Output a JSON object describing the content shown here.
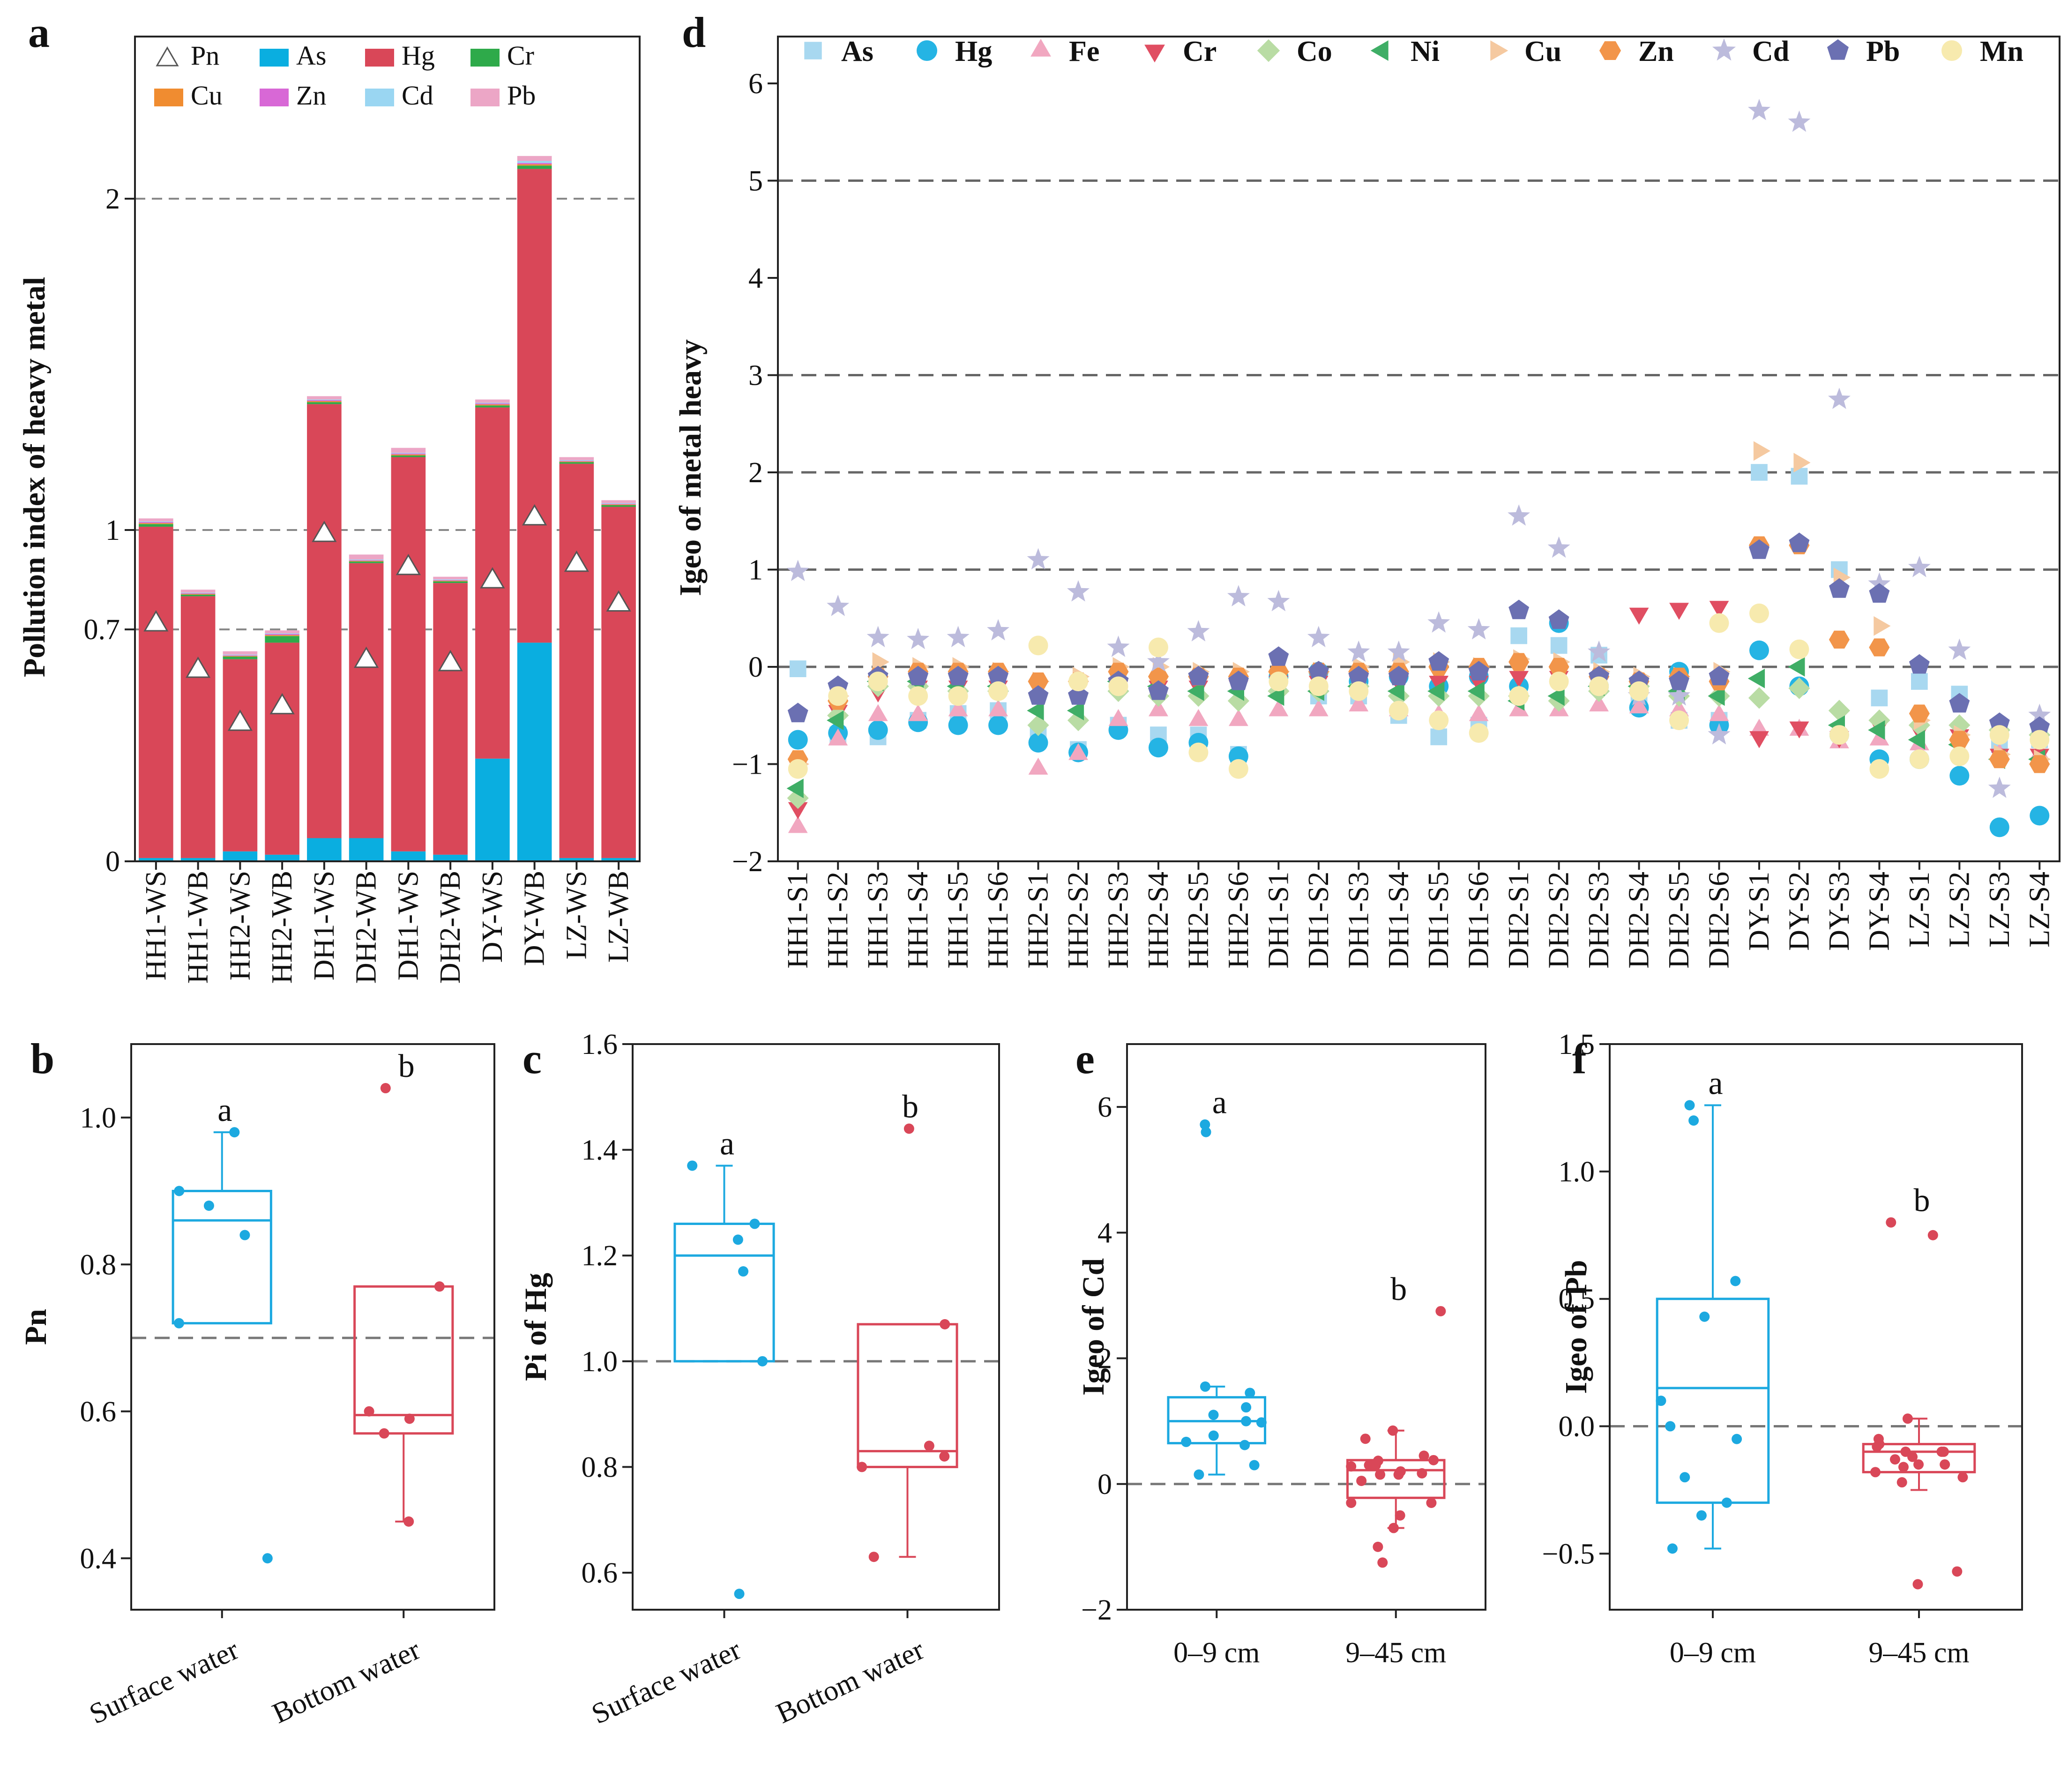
{
  "colors": {
    "As": "#0aaee0",
    "Hg": "#d94758",
    "Cr": "#2eaa4a",
    "Cu": "#f08c30",
    "Zn": "#d868d6",
    "Cd": "#9ad6f2",
    "Pb": "#eca6c6",
    "blue": "#1ca9e0",
    "red": "#d94758",
    "dAs": "#a8d8f0",
    "dHg": "#25b4e4",
    "dFe": "#f1a7c0",
    "dCr": "#e04e62",
    "dCo": "#b9dca4",
    "dNi": "#3fae66",
    "dCu": "#f5c9a0",
    "dZn": "#f2954a",
    "dCd": "#bcbbdc",
    "dPb": "#6b70b2",
    "dMn": "#f7eaae"
  },
  "chart_data": [
    {
      "panel": "a",
      "type": "bar",
      "ylabel": "Pollution index of heavy metal",
      "categories": [
        "HH1-WS",
        "HH1-WB",
        "HH2-WS",
        "HH2-WB",
        "DH1-WS",
        "DH2-WB",
        "DH1-WS",
        "DH2-WB",
        "DY-WS",
        "DY-WB",
        "LZ-WS",
        "LZ-WB"
      ],
      "ytick_labels": [
        "0",
        "0.7",
        "1",
        "2"
      ],
      "ytick_values": [
        0,
        0.7,
        1,
        2
      ],
      "reference_lines": [
        0.7,
        1,
        2
      ],
      "series": [
        {
          "name": "As",
          "values": [
            0.01,
            0.01,
            0.03,
            0.02,
            0.07,
            0.07,
            0.03,
            0.02,
            0.31,
            0.66,
            0.01,
            0.01
          ]
        },
        {
          "name": "Hg",
          "values": [
            1.0,
            0.79,
            0.58,
            0.64,
            1.31,
            0.83,
            1.19,
            0.82,
            1.06,
            1.43,
            1.19,
            1.06
          ]
        },
        {
          "name": "Cr",
          "values": [
            0.008,
            0.005,
            0.008,
            0.02,
            0.006,
            0.005,
            0.005,
            0.005,
            0.006,
            0.01,
            0.005,
            0.005
          ]
        },
        {
          "name": "Cu",
          "values": [
            0.003,
            0.002,
            0.002,
            0.003,
            0.003,
            0.002,
            0.003,
            0.002,
            0.003,
            0.004,
            0.002,
            0.002
          ]
        },
        {
          "name": "Zn",
          "values": [
            0.003,
            0.002,
            0.002,
            0.003,
            0.003,
            0.002,
            0.003,
            0.002,
            0.003,
            0.004,
            0.002,
            0.002
          ]
        },
        {
          "name": "Cd",
          "values": [
            0.002,
            0.002,
            0.002,
            0.002,
            0.002,
            0.002,
            0.002,
            0.002,
            0.002,
            0.006,
            0.002,
            0.002
          ]
        },
        {
          "name": "Pb",
          "values": [
            0.009,
            0.009,
            0.01,
            0.009,
            0.01,
            0.015,
            0.015,
            0.008,
            0.01,
            0.015,
            0.009,
            0.009
          ]
        }
      ],
      "pn_marker": "Pn",
      "pn": [
        0.72,
        0.58,
        0.42,
        0.47,
        0.99,
        0.61,
        0.89,
        0.6,
        0.85,
        1.04,
        0.9,
        0.78
      ],
      "legend": [
        "Pn",
        "As",
        "Hg",
        "Cr",
        "Cu",
        "Zn",
        "Cd",
        "Pb"
      ]
    },
    {
      "panel": "b",
      "type": "box",
      "ylabel": "Pn",
      "ylim": [
        0.33,
        1.1
      ],
      "ytick_labels": [
        "0.4",
        "0.6",
        "0.8",
        "1.0"
      ],
      "ytick_values": [
        0.4,
        0.6,
        0.8,
        1.0
      ],
      "reference_line": 0.7,
      "groups": [
        {
          "name": "Surface water",
          "q1": 0.72,
          "median": 0.86,
          "q3": 0.9,
          "whisker_low": 0.72,
          "whisker_high": 0.98,
          "points": [
            0.98,
            0.9,
            0.88,
            0.84,
            0.72,
            0.4
          ],
          "letter": "a"
        },
        {
          "name": "Bottom water",
          "q1": 0.57,
          "median": 0.595,
          "q3": 0.77,
          "whisker_low": 0.45,
          "whisker_high": 0.77,
          "points": [
            1.04,
            0.77,
            0.6,
            0.59,
            0.57,
            0.45
          ],
          "letter": "b"
        }
      ]
    },
    {
      "panel": "c",
      "type": "box",
      "ylabel": "Pi of Hg",
      "ylim": [
        0.53,
        1.6
      ],
      "ytick_labels": [
        "0.6",
        "0.8",
        "1.0",
        "1.2",
        "1.4",
        "1.6"
      ],
      "ytick_values": [
        0.6,
        0.8,
        1.0,
        1.2,
        1.4,
        1.6
      ],
      "reference_line": 1.0,
      "groups": [
        {
          "name": "Surface water",
          "q1": 1.0,
          "median": 1.2,
          "q3": 1.26,
          "whisker_low": 1.0,
          "whisker_high": 1.37,
          "points": [
            1.37,
            1.26,
            1.23,
            1.17,
            1.0,
            0.56
          ],
          "letter": "a"
        },
        {
          "name": "Bottom water",
          "q1": 0.8,
          "median": 0.83,
          "q3": 1.07,
          "whisker_low": 0.63,
          "whisker_high": 1.07,
          "points": [
            1.44,
            1.07,
            0.84,
            0.82,
            0.8,
            0.63
          ],
          "letter": "b"
        }
      ]
    },
    {
      "panel": "d",
      "type": "scatter",
      "ylabel": "Igeo of metal heavy",
      "ylim": [
        -2,
        6.5
      ],
      "ytick_labels": [
        "−2",
        "−1",
        "0",
        "1",
        "2",
        "3",
        "4",
        "5",
        "6"
      ],
      "ytick_values": [
        -2,
        -1,
        0,
        1,
        2,
        3,
        4,
        5,
        6
      ],
      "reference_lines": [
        0,
        1,
        2,
        3,
        5
      ],
      "categories": [
        "HH1-S1",
        "HH1-S2",
        "HH1-S3",
        "HH1-S4",
        "HH1-S5",
        "HH1-S6",
        "HH2-S1",
        "HH2-S2",
        "HH2-S3",
        "HH2-S4",
        "HH2-S5",
        "HH2-S6",
        "DH1-S1",
        "DH1-S2",
        "DH1-S3",
        "DH1-S4",
        "DH1-S5",
        "DH1-S6",
        "DH2-S1",
        "DH2-S2",
        "DH2-S3",
        "DH2-S4",
        "DH2-S5",
        "DH2-S6",
        "DY-S1",
        "DY-S2",
        "DY-S3",
        "DY-S4",
        "LZ-S1",
        "LZ-S2",
        "LZ-S3",
        "LZ-S4"
      ],
      "series": [
        {
          "name": "As",
          "marker": "square",
          "values": [
            -0.02,
            -0.7,
            -0.72,
            -0.55,
            -0.48,
            -0.45,
            -0.7,
            -0.85,
            -0.6,
            -0.7,
            -0.7,
            -0.9,
            -0.1,
            -0.3,
            -0.3,
            -0.5,
            -0.72,
            -0.6,
            0.32,
            0.22,
            0.12,
            -0.35,
            -0.55,
            -0.55,
            2.0,
            1.96,
            1.0,
            -0.32,
            -0.15,
            -0.28,
            -0.8,
            -0.75
          ]
        },
        {
          "name": "Hg",
          "marker": "circle",
          "values": [
            -0.75,
            -0.68,
            -0.65,
            -0.57,
            -0.6,
            -0.6,
            -0.78,
            -0.88,
            -0.65,
            -0.83,
            -0.78,
            -0.92,
            -0.1,
            -0.05,
            -0.15,
            -0.1,
            -0.2,
            -0.1,
            -0.2,
            0.45,
            -0.2,
            -0.42,
            -0.05,
            -0.6,
            0.17,
            -0.2,
            -0.7,
            -0.95,
            -0.95,
            -1.12,
            -1.65,
            -1.53
          ]
        },
        {
          "name": "Fe",
          "marker": "triangle-up",
          "values": [
            -1.65,
            -0.75,
            -0.5,
            -0.5,
            -0.45,
            -0.45,
            -1.05,
            -0.9,
            -0.55,
            -0.45,
            -0.55,
            -0.55,
            -0.45,
            -0.45,
            -0.4,
            -0.45,
            -0.5,
            -0.5,
            -0.45,
            -0.45,
            -0.4,
            -0.42,
            -0.45,
            -0.5,
            -0.65,
            -0.65,
            -0.78,
            -0.75,
            -0.8,
            -0.85,
            -0.9,
            -0.9
          ]
        },
        {
          "name": "Cr",
          "marker": "triangle-down",
          "values": [
            -1.45,
            -0.45,
            -0.25,
            -0.2,
            -0.2,
            -0.2,
            -0.2,
            -0.2,
            -0.2,
            -0.2,
            -0.2,
            -0.2,
            -0.15,
            -0.15,
            -0.15,
            -0.15,
            -0.15,
            -0.15,
            -0.1,
            -0.1,
            -0.15,
            0.55,
            0.6,
            0.62,
            -0.72,
            -0.62,
            -0.72,
            -0.6,
            -0.65,
            -0.7,
            -0.9,
            -0.9
          ]
        },
        {
          "name": "Co",
          "marker": "diamond",
          "values": [
            -1.35,
            -0.5,
            -0.2,
            -0.2,
            -0.25,
            -0.25,
            -0.6,
            -0.55,
            -0.25,
            -0.3,
            -0.3,
            -0.35,
            -0.25,
            -0.25,
            -0.2,
            -0.3,
            -0.3,
            -0.3,
            -0.3,
            -0.35,
            -0.25,
            -0.2,
            -0.3,
            -0.3,
            -0.32,
            -0.22,
            -0.45,
            -0.55,
            -0.6,
            -0.6,
            -0.65,
            -0.7
          ]
        },
        {
          "name": "Ni",
          "marker": "triangle-left",
          "values": [
            -1.25,
            -0.55,
            -0.15,
            -0.15,
            -0.2,
            -0.2,
            -0.45,
            -0.45,
            -0.15,
            -0.2,
            -0.25,
            -0.25,
            -0.3,
            -0.25,
            -0.2,
            -0.25,
            -0.25,
            -0.25,
            -0.35,
            -0.3,
            -0.2,
            -0.2,
            -0.25,
            -0.3,
            -0.12,
            0.0,
            -0.6,
            -0.65,
            -0.75,
            -0.8,
            -0.95,
            -0.95
          ]
        },
        {
          "name": "Cu",
          "marker": "triangle-right",
          "values": [
            -1.0,
            -0.3,
            0.05,
            0.0,
            0.0,
            -0.05,
            -0.15,
            -0.1,
            0.0,
            0.0,
            -0.05,
            -0.05,
            -0.05,
            -0.05,
            0.0,
            0.05,
            0.05,
            0.0,
            0.08,
            0.05,
            -0.05,
            -0.1,
            -0.1,
            -0.05,
            2.22,
            2.1,
            0.92,
            0.42,
            -0.55,
            -0.7,
            -0.9,
            -0.95
          ]
        },
        {
          "name": "Zn",
          "marker": "hexagon",
          "values": [
            -0.95,
            -0.35,
            -0.1,
            -0.05,
            -0.05,
            -0.05,
            -0.15,
            -0.15,
            -0.05,
            -0.1,
            -0.1,
            -0.1,
            -0.05,
            -0.05,
            -0.05,
            -0.05,
            0.0,
            0.0,
            0.05,
            0.0,
            -0.1,
            -0.15,
            -0.1,
            -0.15,
            1.25,
            1.25,
            0.28,
            0.2,
            -0.48,
            -0.75,
            -0.95,
            -1.0
          ]
        },
        {
          "name": "Cd",
          "marker": "star",
          "values": [
            0.98,
            0.62,
            0.3,
            0.28,
            0.3,
            0.37,
            1.1,
            0.77,
            0.2,
            0.05,
            0.36,
            0.72,
            0.67,
            0.3,
            0.15,
            0.15,
            0.45,
            0.38,
            1.55,
            1.22,
            0.15,
            -0.3,
            -0.3,
            -0.7,
            5.72,
            5.6,
            2.75,
            0.85,
            1.02,
            0.17,
            -1.25,
            -0.5
          ]
        },
        {
          "name": "Pb",
          "marker": "pentagon",
          "values": [
            -0.48,
            -0.2,
            -0.1,
            -0.1,
            -0.1,
            -0.1,
            -0.3,
            -0.3,
            -0.15,
            -0.25,
            -0.1,
            -0.15,
            0.1,
            -0.05,
            -0.1,
            -0.1,
            0.05,
            -0.05,
            0.58,
            0.48,
            -0.1,
            -0.15,
            -0.15,
            -0.1,
            1.2,
            1.27,
            0.8,
            0.75,
            0.02,
            -0.38,
            -0.58,
            -0.62
          ]
        },
        {
          "name": "Mn",
          "marker": "circle",
          "values": [
            -1.05,
            -0.3,
            -0.15,
            -0.3,
            -0.3,
            -0.25,
            0.22,
            -0.15,
            -0.2,
            0.2,
            -0.88,
            -1.05,
            -0.15,
            -0.2,
            -0.25,
            -0.45,
            -0.55,
            -0.68,
            -0.3,
            -0.15,
            -0.2,
            -0.25,
            -0.55,
            0.45,
            0.55,
            0.18,
            -0.7,
            -1.05,
            -0.95,
            -0.92,
            -0.7,
            -0.75
          ]
        }
      ]
    },
    {
      "panel": "e",
      "type": "box",
      "ylabel": "Igeo of Cd",
      "ylim": [
        -2,
        7
      ],
      "ytick_labels": [
        "−2",
        "0",
        "2",
        "4",
        "6"
      ],
      "ytick_values": [
        -2,
        0,
        2,
        4,
        6
      ],
      "reference_line": 0,
      "groups": [
        {
          "name": "0–9 cm",
          "q1": 0.65,
          "median": 1.0,
          "q3": 1.38,
          "whisker_low": 0.15,
          "whisker_high": 1.55,
          "points": [
            5.72,
            5.6,
            1.55,
            1.45,
            1.22,
            1.1,
            1.0,
            0.98,
            0.77,
            0.67,
            0.62,
            0.3,
            0.15
          ],
          "letter": "a"
        },
        {
          "name": "9–45 cm",
          "q1": -0.22,
          "median": 0.22,
          "q3": 0.38,
          "whisker_low": -0.7,
          "whisker_high": 0.85,
          "points": [
            2.75,
            0.85,
            0.72,
            0.45,
            0.38,
            0.37,
            0.3,
            0.3,
            0.28,
            0.2,
            0.17,
            0.15,
            0.15,
            0.05,
            -0.3,
            -0.3,
            -0.5,
            -0.7,
            -1.0,
            -1.25
          ],
          "letter": "b"
        }
      ]
    },
    {
      "panel": "f",
      "type": "box",
      "ylabel": "Igeo of Pb",
      "ylim": [
        -0.72,
        1.5
      ],
      "ytick_labels": [
        "−0.5",
        "0.0",
        "0.5",
        "1.0",
        "1.5"
      ],
      "ytick_values": [
        -0.5,
        0,
        0.5,
        1.0,
        1.5
      ],
      "reference_line": 0,
      "groups": [
        {
          "name": "0–9 cm",
          "q1": -0.3,
          "median": 0.15,
          "q3": 0.5,
          "whisker_low": -0.48,
          "whisker_high": 1.26,
          "points": [
            1.26,
            1.2,
            0.57,
            0.43,
            0.1,
            0.0,
            -0.05,
            -0.2,
            -0.3,
            -0.35,
            -0.48
          ],
          "letter": "a"
        },
        {
          "name": "9–45 cm",
          "q1": -0.18,
          "median": -0.1,
          "q3": -0.07,
          "whisker_low": -0.25,
          "whisker_high": 0.03,
          "points": [
            0.8,
            0.75,
            0.03,
            -0.05,
            -0.07,
            -0.08,
            -0.1,
            -0.1,
            -0.1,
            -0.12,
            -0.13,
            -0.15,
            -0.15,
            -0.16,
            -0.18,
            -0.2,
            -0.22,
            -0.57,
            -0.62
          ],
          "letter": "b"
        }
      ]
    }
  ]
}
